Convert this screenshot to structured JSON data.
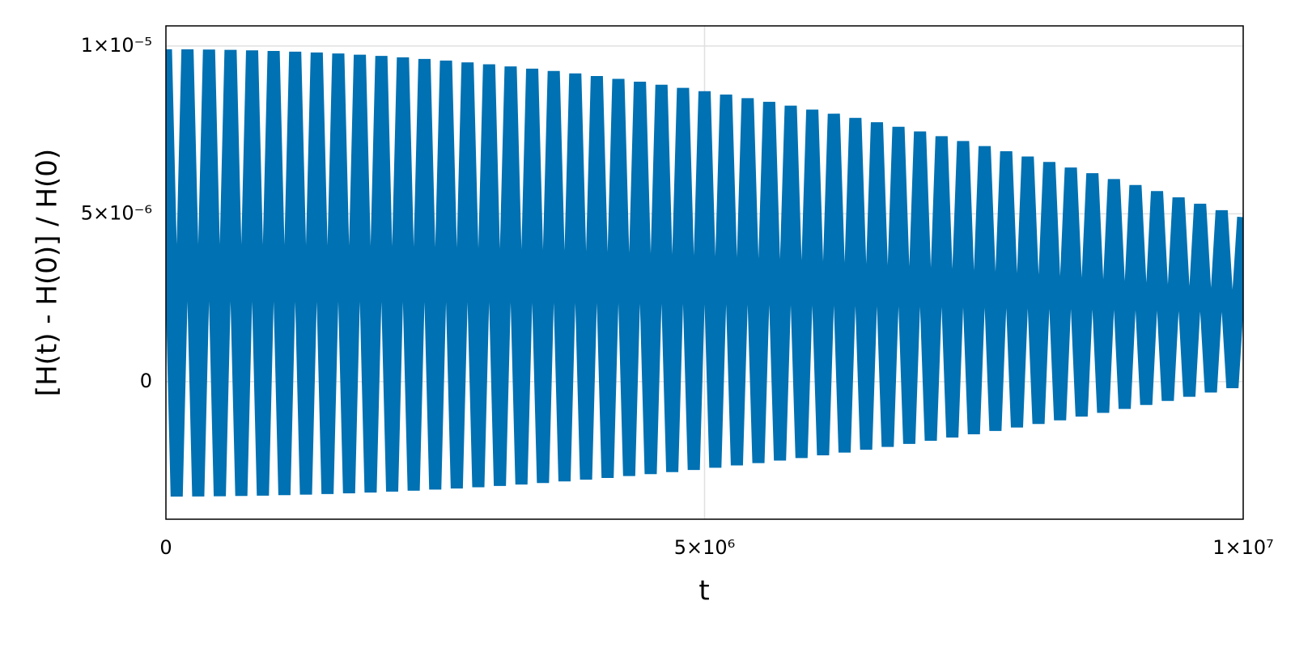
{
  "chart_data": {
    "type": "line",
    "xlabel": "t",
    "ylabel": "[H(t) - H(0)] / H(0)",
    "x": [
      0,
      100000,
      200000,
      300000,
      400000,
      500000,
      600000,
      700000,
      800000,
      900000,
      1000000,
      1100000,
      1200000,
      1300000,
      1400000,
      1500000,
      1600000,
      1700000,
      1800000,
      1900000,
      2000000,
      2100000,
      2200000,
      2300000,
      2400000,
      2500000,
      2600000,
      2700000,
      2800000,
      2900000,
      3000000,
      3100000,
      3200000,
      3300000,
      3400000,
      3500000,
      3600000,
      3700000,
      3800000,
      3900000,
      4000000,
      4100000,
      4200000,
      4300000,
      4400000,
      4500000,
      4600000,
      4700000,
      4800000,
      4900000,
      5000000,
      5100000,
      5200000,
      5300000,
      5400000,
      5500000,
      5600000,
      5700000,
      5800000,
      5900000,
      6000000,
      6100000,
      6200000,
      6300000,
      6400000,
      6500000,
      6600000,
      6700000,
      6800000,
      6900000,
      7000000,
      7100000,
      7200000,
      7300000,
      7400000,
      7500000,
      7600000,
      7700000,
      7800000,
      7900000,
      8000000,
      8100000,
      8200000,
      8300000,
      8400000,
      8500000,
      8600000,
      8700000,
      8800000,
      8900000,
      9000000,
      9100000,
      9200000,
      9300000,
      9400000,
      9500000,
      9600000,
      9700000,
      9800000,
      9900000,
      10000000
    ],
    "series": [
      {
        "color": "#0071b2",
        "values": [
          9.9e-06,
          -3.42e-06,
          9.898e-06,
          -3.417e-06,
          9.892e-06,
          -3.412e-06,
          9.882e-06,
          -3.404e-06,
          9.868e-06,
          -3.393e-06,
          9.85e-06,
          -3.38e-06,
          9.828e-06,
          -3.364e-06,
          9.802e-06,
          -3.346e-06,
          9.772e-06,
          -3.325e-06,
          9.738e-06,
          -3.301e-06,
          9.7e-06,
          -3.274e-06,
          9.658e-06,
          -3.245e-06,
          9.612e-06,
          -3.214e-06,
          9.562e-06,
          -3.179e-06,
          9.508e-06,
          -3.142e-06,
          9.45e-06,
          -3.103e-06,
          9.388e-06,
          -3.061e-06,
          9.322e-06,
          -3.016e-06,
          9.252e-06,
          -2.968e-06,
          9.178e-06,
          -2.918e-06,
          9.1e-06,
          -2.865e-06,
          9.018e-06,
          -2.81e-06,
          8.932e-06,
          -2.752e-06,
          8.842e-06,
          -2.691e-06,
          8.748e-06,
          -2.628e-06,
          8.65e-06,
          -2.562e-06,
          8.548e-06,
          -2.493e-06,
          8.442e-06,
          -2.422e-06,
          8.332e-06,
          -2.348e-06,
          8.218e-06,
          -2.271e-06,
          8.1e-06,
          -2.192e-06,
          7.978e-06,
          -2.11e-06,
          7.852e-06,
          -2.026e-06,
          7.722e-06,
          -1.939e-06,
          7.588e-06,
          -1.849e-06,
          7.45e-06,
          -1.756e-06,
          7.308e-06,
          -1.661e-06,
          7.162e-06,
          -1.564e-06,
          7.012e-06,
          -1.463e-06,
          6.858e-06,
          -1.36e-06,
          6.7e-06,
          -1.255e-06,
          6.538e-06,
          -1.147e-06,
          6.372e-06,
          -1.036e-06,
          6.202e-06,
          -9.22e-07,
          6.028e-06,
          -8.06e-07,
          5.85e-06,
          -6.87e-07,
          5.668e-06,
          -5.66e-07,
          5.482e-06,
          -4.42e-07,
          5.292e-06,
          -3.15e-07,
          5.098e-06,
          -1.86e-07,
          4.9e-06
        ]
      }
    ],
    "xlim": [
      0,
      10000000
    ],
    "xticks": [
      0,
      {
        "value": 5000000,
        "label": "5×10⁶"
      },
      {
        "value": 10000000,
        "label": "1×10⁷"
      }
    ],
    "ylim": [
      -4.1e-06,
      1.06e-05
    ],
    "yticks": [
      0,
      {
        "value": 5e-06,
        "label": "5×10⁻⁶"
      },
      {
        "value": 1e-05,
        "label": "1×10⁻⁵"
      }
    ],
    "grid": true
  }
}
